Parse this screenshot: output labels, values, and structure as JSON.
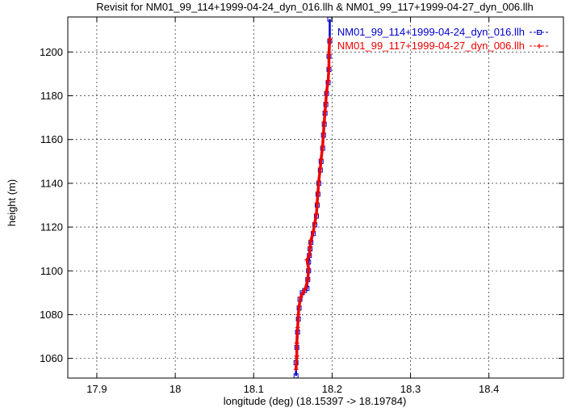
{
  "chart_data": {
    "type": "line",
    "title": "Revisit for NM01_99_114+1999-04-24_dyn_016.llh & NM01_99_117+1999-04-27_dyn_006.llh",
    "xlabel": "longitude (deg) (18.15397 -> 18.19784)",
    "ylabel": "height (m)",
    "xlim": [
      17.863,
      18.495
    ],
    "ylim": [
      1051,
      1216
    ],
    "x_ticks": [
      "17.9",
      "18",
      "18.1",
      "18.2",
      "18.3",
      "18.4"
    ],
    "x_tick_values": [
      17.9,
      18.0,
      18.1,
      18.2,
      18.3,
      18.4
    ],
    "y_ticks": [
      "1060",
      "1080",
      "1100",
      "1120",
      "1140",
      "1160",
      "1180",
      "1200"
    ],
    "y_tick_values": [
      1060,
      1080,
      1100,
      1120,
      1140,
      1160,
      1180,
      1200
    ],
    "grid": true,
    "legend_position": "top-right",
    "series": [
      {
        "name": "NM01_99_114+1999-04-24_dyn_016.llh",
        "color": "#0000cc",
        "marker": "square",
        "line_style": "dashed",
        "x": [
          18.154,
          18.154,
          18.155,
          18.156,
          18.157,
          18.158,
          18.159,
          18.162,
          18.165,
          18.168,
          18.169,
          18.17,
          18.17,
          18.171,
          18.172,
          18.173,
          18.176,
          18.178,
          18.18,
          18.181,
          18.182,
          18.183,
          18.185,
          18.186,
          18.188,
          18.189,
          18.19,
          18.191,
          18.192,
          18.193,
          18.195,
          18.196,
          18.196,
          18.197,
          18.197
        ],
        "y": [
          1052,
          1058,
          1065,
          1072,
          1078,
          1083,
          1087,
          1090,
          1091,
          1092,
          1096,
          1100,
          1104,
          1107,
          1110,
          1113,
          1117,
          1121,
          1125,
          1130,
          1135,
          1140,
          1146,
          1150,
          1156,
          1162,
          1167,
          1172,
          1176,
          1181,
          1186,
          1192,
          1198,
          1205,
          1215
        ]
      },
      {
        "name": "NM01_99_117+1999-04-27_dyn_006.llh",
        "color": "#ee0000",
        "marker": "plus",
        "line_style": "dashed",
        "x": [
          18.154,
          18.155,
          18.155,
          18.156,
          18.157,
          18.158,
          18.16,
          18.163,
          18.166,
          18.169,
          18.17,
          18.168,
          18.171,
          18.172,
          18.173,
          18.176,
          18.178,
          18.18,
          18.181,
          18.182,
          18.183,
          18.185,
          18.186,
          18.188,
          18.189,
          18.19,
          18.191,
          18.192,
          18.193,
          18.195,
          18.196,
          18.196,
          18.197
        ],
        "y": [
          1055,
          1061,
          1067,
          1074,
          1080,
          1084,
          1088,
          1090,
          1092,
          1096,
          1101,
          1105,
          1107,
          1111,
          1114,
          1118,
          1122,
          1126,
          1131,
          1136,
          1141,
          1147,
          1151,
          1157,
          1163,
          1168,
          1173,
          1177,
          1182,
          1187,
          1193,
          1199,
          1206
        ]
      }
    ]
  }
}
